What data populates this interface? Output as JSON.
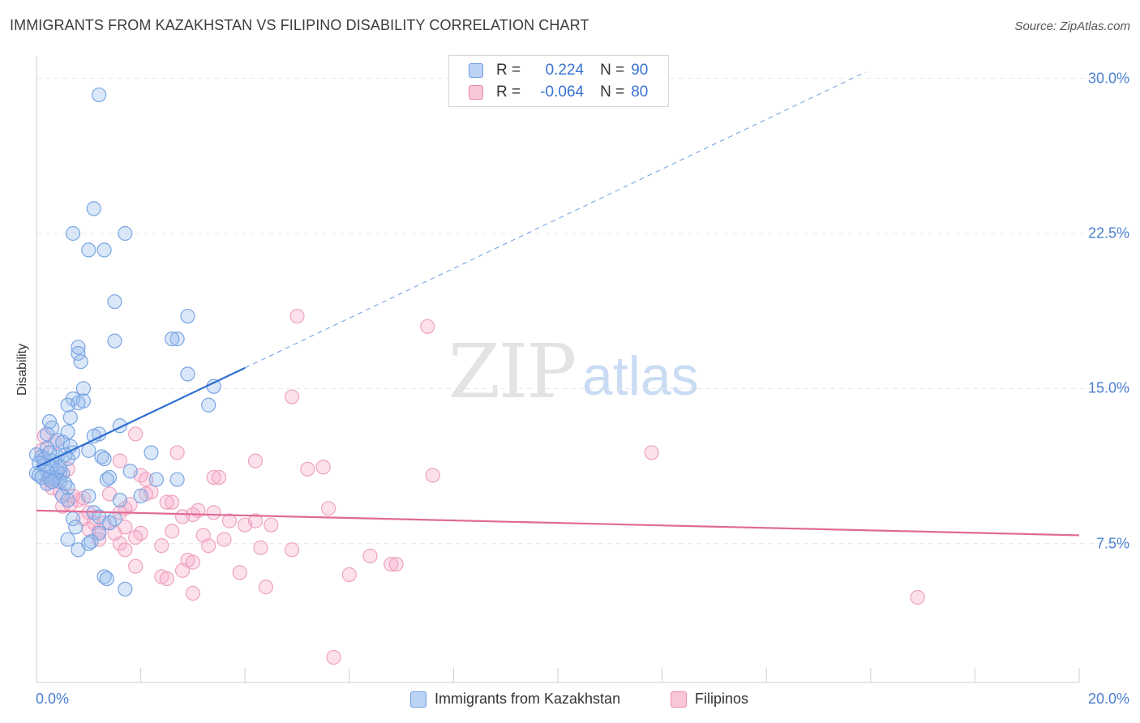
{
  "title": "IMMIGRANTS FROM KAZAKHSTAN VS FILIPINO DISABILITY CORRELATION CHART",
  "source": "Source: ZipAtlas.com",
  "watermark": {
    "zip": "ZIP",
    "atlas": "atlas"
  },
  "colors": {
    "blue": "#6e9de0",
    "blue_line": "#2f6fcf",
    "pink": "#e88ab0",
    "pink_line": "#e06a96",
    "tick_text": "#4a7fd0"
  },
  "legend": {
    "r_label": "R =",
    "n_label": "N =",
    "series": [
      {
        "r": "0.224",
        "n": "90"
      },
      {
        "r": "-0.064",
        "n": "80"
      }
    ]
  },
  "bottom_legend": [
    "Immigrants from Kazakhstan",
    "Filipinos"
  ],
  "chart_data": {
    "type": "scatter",
    "title": "IMMIGRANTS FROM KAZAKHSTAN VS FILIPINO DISABILITY CORRELATION CHART",
    "xlabel": "",
    "ylabel": "Disability",
    "xlim": [
      0,
      20
    ],
    "ylim": [
      0,
      31
    ],
    "x_tick_labels": [
      "0.0%",
      "20.0%"
    ],
    "y_ticks": [
      7.5,
      15.0,
      22.5,
      30.0
    ],
    "y_tick_labels": [
      "7.5%",
      "15.0%",
      "22.5%",
      "30.0%"
    ],
    "series": [
      {
        "name": "Immigrants from Kazakhstan",
        "r": 0.224,
        "n": 90,
        "trend": {
          "x0": 0,
          "y0": 11.2,
          "x1": 4.0,
          "y1": 16.0,
          "dash_to_x": 15.9,
          "dash_to_y": 30.3
        },
        "points": [
          [
            1.2,
            29.2
          ],
          [
            1.1,
            23.7
          ],
          [
            0.7,
            22.5
          ],
          [
            1.7,
            22.5
          ],
          [
            1.0,
            21.7
          ],
          [
            1.3,
            21.7
          ],
          [
            1.5,
            19.2
          ],
          [
            2.9,
            18.5
          ],
          [
            1.5,
            17.3
          ],
          [
            2.7,
            17.4
          ],
          [
            2.6,
            17.4
          ],
          [
            0.8,
            17.0
          ],
          [
            0.8,
            16.7
          ],
          [
            0.85,
            16.3
          ],
          [
            2.9,
            15.7
          ],
          [
            3.4,
            15.1
          ],
          [
            0.9,
            15.0
          ],
          [
            0.7,
            14.5
          ],
          [
            0.9,
            14.4
          ],
          [
            0.8,
            14.3
          ],
          [
            3.3,
            14.2
          ],
          [
            0.6,
            14.2
          ],
          [
            0.65,
            13.6
          ],
          [
            0.25,
            13.4
          ],
          [
            1.6,
            13.2
          ],
          [
            0.3,
            13.1
          ],
          [
            0.6,
            12.9
          ],
          [
            0.2,
            12.8
          ],
          [
            1.2,
            12.8
          ],
          [
            1.1,
            12.7
          ],
          [
            0.4,
            12.5
          ],
          [
            0.5,
            12.4
          ],
          [
            0.65,
            12.2
          ],
          [
            0.2,
            12.1
          ],
          [
            1.0,
            12.0
          ],
          [
            2.2,
            11.9
          ],
          [
            0.7,
            11.9
          ],
          [
            0.0,
            11.8
          ],
          [
            0.1,
            11.7
          ],
          [
            0.4,
            11.7
          ],
          [
            1.25,
            11.7
          ],
          [
            1.3,
            11.6
          ],
          [
            0.3,
            11.5
          ],
          [
            0.15,
            11.3
          ],
          [
            0.2,
            11.0
          ],
          [
            1.8,
            11.0
          ],
          [
            0.45,
            10.9
          ],
          [
            0.5,
            10.9
          ],
          [
            0.0,
            10.9
          ],
          [
            0.05,
            10.8
          ],
          [
            0.1,
            10.7
          ],
          [
            0.35,
            10.7
          ],
          [
            0.25,
            10.7
          ],
          [
            1.4,
            10.7
          ],
          [
            2.7,
            10.6
          ],
          [
            2.3,
            10.6
          ],
          [
            1.35,
            10.6
          ],
          [
            0.35,
            10.6
          ],
          [
            0.45,
            10.5
          ],
          [
            0.55,
            10.4
          ],
          [
            0.6,
            10.2
          ],
          [
            1.0,
            9.8
          ],
          [
            0.5,
            9.8
          ],
          [
            2.0,
            9.8
          ],
          [
            0.6,
            9.6
          ],
          [
            1.6,
            9.6
          ],
          [
            1.1,
            9.0
          ],
          [
            1.2,
            8.8
          ],
          [
            1.5,
            8.7
          ],
          [
            0.7,
            8.7
          ],
          [
            1.4,
            8.5
          ],
          [
            0.75,
            8.3
          ],
          [
            1.2,
            8.0
          ],
          [
            0.6,
            7.7
          ],
          [
            1.05,
            7.6
          ],
          [
            1.0,
            7.5
          ],
          [
            0.8,
            7.2
          ],
          [
            1.3,
            5.9
          ],
          [
            1.35,
            5.8
          ],
          [
            1.7,
            5.3
          ],
          [
            0.3,
            11.2
          ],
          [
            0.4,
            11.0
          ],
          [
            0.55,
            11.8
          ],
          [
            0.15,
            11.6
          ],
          [
            0.2,
            10.4
          ],
          [
            0.05,
            11.4
          ],
          [
            0.3,
            10.5
          ],
          [
            0.45,
            11.2
          ],
          [
            0.6,
            11.6
          ],
          [
            0.25,
            11.9
          ]
        ]
      },
      {
        "name": "Filipinos",
        "r": -0.064,
        "n": 80,
        "trend": {
          "x0": 0,
          "y0": 9.1,
          "x1": 20.0,
          "y1": 7.9
        },
        "points": [
          [
            5.0,
            18.5
          ],
          [
            7.5,
            18.0
          ],
          [
            4.9,
            14.6
          ],
          [
            1.9,
            12.8
          ],
          [
            0.15,
            12.7
          ],
          [
            0.35,
            12.4
          ],
          [
            2.7,
            11.9
          ],
          [
            11.8,
            11.9
          ],
          [
            4.2,
            11.5
          ],
          [
            1.6,
            11.5
          ],
          [
            5.2,
            11.1
          ],
          [
            5.5,
            11.2
          ],
          [
            7.6,
            10.8
          ],
          [
            2.0,
            10.8
          ],
          [
            2.1,
            10.6
          ],
          [
            3.5,
            10.7
          ],
          [
            3.4,
            10.7
          ],
          [
            0.2,
            10.4
          ],
          [
            0.3,
            10.2
          ],
          [
            2.1,
            9.9
          ],
          [
            0.9,
            9.7
          ],
          [
            2.5,
            9.5
          ],
          [
            2.6,
            9.5
          ],
          [
            0.65,
            9.4
          ],
          [
            0.5,
            9.3
          ],
          [
            5.6,
            9.2
          ],
          [
            1.7,
            9.2
          ],
          [
            3.1,
            9.1
          ],
          [
            3.0,
            8.9
          ],
          [
            1.6,
            9.0
          ],
          [
            1.0,
            9.0
          ],
          [
            3.7,
            8.6
          ],
          [
            0.9,
            8.7
          ],
          [
            1.3,
            8.5
          ],
          [
            1.1,
            8.5
          ],
          [
            4.0,
            8.4
          ],
          [
            4.5,
            8.4
          ],
          [
            1.7,
            8.3
          ],
          [
            2.6,
            8.1
          ],
          [
            1.2,
            8.1
          ],
          [
            2.0,
            8.0
          ],
          [
            3.2,
            7.9
          ],
          [
            1.9,
            7.8
          ],
          [
            1.2,
            7.7
          ],
          [
            3.6,
            7.7
          ],
          [
            1.6,
            7.5
          ],
          [
            3.3,
            7.4
          ],
          [
            2.4,
            7.4
          ],
          [
            4.3,
            7.3
          ],
          [
            1.7,
            7.2
          ],
          [
            6.4,
            6.9
          ],
          [
            2.9,
            6.7
          ],
          [
            3.0,
            6.6
          ],
          [
            6.8,
            6.5
          ],
          [
            6.9,
            6.5
          ],
          [
            1.9,
            6.4
          ],
          [
            2.8,
            6.2
          ],
          [
            3.9,
            6.1
          ],
          [
            6.0,
            6.0
          ],
          [
            2.4,
            5.9
          ],
          [
            2.5,
            5.8
          ],
          [
            4.4,
            5.4
          ],
          [
            3.0,
            5.1
          ],
          [
            16.9,
            4.9
          ],
          [
            5.7,
            2.0
          ],
          [
            0.8,
            9.6
          ],
          [
            1.4,
            9.9
          ],
          [
            0.25,
            10.6
          ],
          [
            0.7,
            9.8
          ],
          [
            1.0,
            8.2
          ],
          [
            2.2,
            10.0
          ],
          [
            4.9,
            7.2
          ],
          [
            0.1,
            12.0
          ],
          [
            0.45,
            10.0
          ],
          [
            1.8,
            9.4
          ],
          [
            3.4,
            9.0
          ],
          [
            0.6,
            11.1
          ],
          [
            2.8,
            8.8
          ],
          [
            4.2,
            8.6
          ],
          [
            1.5,
            8.0
          ]
        ]
      }
    ]
  }
}
